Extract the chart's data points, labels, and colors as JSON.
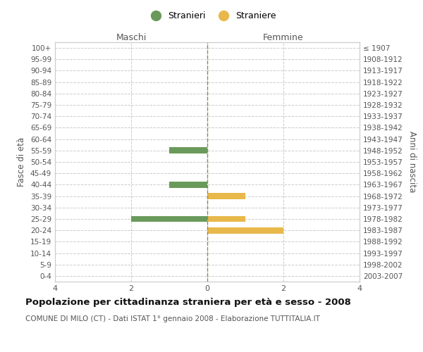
{
  "age_groups": [
    "100+",
    "95-99",
    "90-94",
    "85-89",
    "80-84",
    "75-79",
    "70-74",
    "65-69",
    "60-64",
    "55-59",
    "50-54",
    "45-49",
    "40-44",
    "35-39",
    "30-34",
    "25-29",
    "20-24",
    "15-19",
    "10-14",
    "5-9",
    "0-4"
  ],
  "birth_years": [
    "≤ 1907",
    "1908-1912",
    "1913-1917",
    "1918-1922",
    "1923-1927",
    "1928-1932",
    "1933-1937",
    "1938-1942",
    "1943-1947",
    "1948-1952",
    "1953-1957",
    "1958-1962",
    "1963-1967",
    "1968-1972",
    "1973-1977",
    "1978-1982",
    "1983-1987",
    "1988-1992",
    "1993-1997",
    "1998-2002",
    "2003-2007"
  ],
  "males": [
    0,
    0,
    0,
    0,
    0,
    0,
    0,
    0,
    0,
    1,
    0,
    0,
    1,
    0,
    0,
    2,
    0,
    0,
    0,
    0,
    0
  ],
  "females": [
    0,
    0,
    0,
    0,
    0,
    0,
    0,
    0,
    0,
    0,
    0,
    0,
    0,
    1,
    0,
    1,
    2,
    0,
    0,
    0,
    0
  ],
  "male_color": "#6a9a5b",
  "female_color": "#e8b84b",
  "title": "Popolazione per cittadinanza straniera per età e sesso - 2008",
  "subtitle": "COMUNE DI MILO (CT) - Dati ISTAT 1° gennaio 2008 - Elaborazione TUTTITALIA.IT",
  "xlabel_left": "Maschi",
  "xlabel_right": "Femmine",
  "ylabel_left": "Fasce di età",
  "ylabel_right": "Anni di nascita",
  "xlim": 4,
  "legend_stranieri": "Stranieri",
  "legend_straniere": "Straniere",
  "background_color": "#ffffff",
  "grid_color": "#cccccc",
  "spine_color": "#cccccc",
  "center_line_color": "#8b8b4e",
  "tick_color": "#888888",
  "label_color": "#555555"
}
